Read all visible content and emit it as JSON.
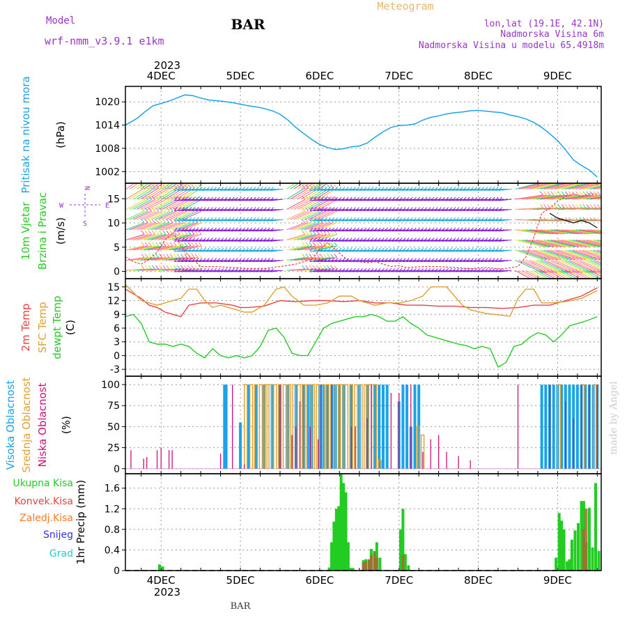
{
  "header": {
    "model_label": "Model",
    "model_name": "wrf-nmm_v3.9.1 e1km",
    "station": "BAR",
    "product": "Meteogram",
    "coords": "lon,lat (19.1E, 42.1N)",
    "elevation": "Nadmorska Visina 6m",
    "model_elevation": "Nadmorska Visina u modelu 65.4918m"
  },
  "footer": {
    "station": "BAR",
    "credit": "made by Angel"
  },
  "time_axis": {
    "year": "2023",
    "days": [
      "4DEC",
      "5DEC",
      "6DEC",
      "7DEC",
      "8DEC",
      "9DEC"
    ]
  },
  "colors": {
    "pressure": "#1aa3e8",
    "wind_green": "#22cc22",
    "wind_purple": "#8822dd",
    "temp2m": "#e84040",
    "sfc_temp": "#e0a030",
    "dewpoint": "#22cc22",
    "high_cloud": "#1aa3e8",
    "mid_cloud": "#e0a030",
    "low_cloud": "#cc1177",
    "total_precip": "#22cc22",
    "conv_precip": "#e84040",
    "frozen": "#ff7a22",
    "snow": "#3333dd",
    "hail": "#22cccc",
    "gust_marker": "#e84040",
    "title_purple": "#9933cc"
  },
  "chart_data": [
    {
      "type": "line",
      "ylabel_lines": [
        "Pritisak na nivou mora",
        "(hPa)"
      ],
      "yticks": [
        "1020",
        "1014",
        "1008",
        "1002"
      ],
      "ylim": [
        999,
        1024
      ],
      "xlim": [
        3.55,
        9.55
      ],
      "grid": true,
      "series": [
        {
          "x": [
            3.55,
            3.6,
            3.7,
            3.8,
            3.9,
            4.0,
            4.1,
            4.2,
            4.3,
            4.4,
            4.5,
            4.6,
            4.7,
            4.8,
            4.9,
            5.0,
            5.1,
            5.2,
            5.3,
            5.4,
            5.5,
            5.6,
            5.7,
            5.8,
            5.9,
            6.0,
            6.1,
            6.2,
            6.3,
            6.4,
            6.5,
            6.6,
            6.7,
            6.8,
            6.9,
            7.0,
            7.1,
            7.2,
            7.3,
            7.4,
            7.5,
            7.6,
            7.7,
            7.8,
            7.9,
            8.0,
            8.1,
            8.2,
            8.3,
            8.4,
            8.5,
            8.6,
            8.7,
            8.8,
            8.9,
            9.0,
            9.1,
            9.2,
            9.3,
            9.4,
            9.5
          ],
          "y": [
            1014,
            1014.6,
            1015.8,
            1017.5,
            1019,
            1019.6,
            1020.2,
            1021,
            1021.8,
            1021.6,
            1021,
            1020.5,
            1020.3,
            1020.1,
            1019.8,
            1019.4,
            1019,
            1018.7,
            1018.3,
            1017.7,
            1016.8,
            1015.3,
            1013.4,
            1011.8,
            1010.3,
            1009,
            1008.2,
            1007.7,
            1007.9,
            1008.4,
            1008.6,
            1009.4,
            1010.9,
            1012.3,
            1013.4,
            1013.9,
            1014,
            1014.3,
            1015.3,
            1016,
            1016.4,
            1016.9,
            1017.2,
            1017.4,
            1017.7,
            1017.8,
            1017.6,
            1017.4,
            1017.2,
            1016.6,
            1016.2,
            1015.6,
            1014.7,
            1013.4,
            1011.8,
            1010,
            1007.6,
            1005,
            1003.6,
            1002.4,
            1000.6
          ]
        }
      ]
    },
    {
      "type": "line",
      "ylabel_lines": [
        "10m Vjetar",
        "Brzina i Pravac",
        "(m/s)"
      ],
      "compass": {
        "n": "N",
        "s": "S",
        "w": "W",
        "e": "E"
      },
      "yticks": [
        "15",
        "10",
        "5",
        "0"
      ],
      "ylim": [
        -1.5,
        18.2
      ],
      "xlim": [
        3.55,
        9.55
      ],
      "grid": true,
      "series": [
        {
          "x": [
            3.55,
            3.65,
            3.75,
            3.85,
            3.95,
            4.05,
            4.15,
            4.3,
            4.5,
            4.7,
            4.9,
            5.1,
            5.3,
            5.5,
            5.7,
            5.9,
            6.0,
            6.1,
            6.2,
            6.3,
            6.4,
            6.5,
            6.6,
            6.7,
            6.8,
            6.9,
            7.0,
            7.1,
            7.3,
            7.5,
            7.7,
            7.9,
            8.1,
            8.3,
            8.5,
            8.6,
            8.7,
            8.8,
            8.9,
            9.0,
            9.1,
            9.2,
            9.3,
            9.4,
            9.5
          ],
          "y": [
            3,
            2,
            1.5,
            2.5,
            4,
            6.5,
            8,
            4,
            1,
            1,
            0.8,
            0.6,
            0.6,
            1,
            1.5,
            2.5,
            4.5,
            6,
            4.5,
            3,
            2,
            2,
            1.8,
            2,
            1.5,
            1,
            1.2,
            0.8,
            1,
            1,
            0.8,
            0.6,
            0.8,
            0.5,
            1,
            3,
            7,
            12,
            13,
            14.5,
            15.5,
            16,
            15.5,
            16,
            16
          ]
        },
        {
          "x": [
            8.9,
            9.0,
            9.1,
            9.2,
            9.3,
            9.4,
            9.5
          ],
          "y": [
            12,
            11,
            10.5,
            10,
            10.5,
            10,
            9
          ]
        }
      ],
      "bands": [
        {
          "from": 3.55,
          "to": 4.3,
          "color": "green"
        },
        {
          "from": 5.55,
          "to": 6.0,
          "color": "green"
        },
        {
          "from": 8.45,
          "to": 9.55,
          "color": "green"
        }
      ]
    },
    {
      "type": "line",
      "ylabel_lines": [
        "2m Temp",
        "SFC Temp",
        "dewpt Temp",
        "(C)"
      ],
      "yticks": [
        "15",
        "12",
        "9",
        "6",
        "3",
        "0",
        "-3"
      ],
      "ylim": [
        -4.5,
        16.8
      ],
      "xlim": [
        3.55,
        9.55
      ],
      "grid": true,
      "series": [
        {
          "name": "2m Temp",
          "x": [
            3.55,
            3.65,
            3.75,
            3.85,
            3.95,
            4.05,
            4.15,
            4.25,
            4.35,
            4.5,
            4.7,
            4.9,
            5.0,
            5.1,
            5.3,
            5.5,
            5.7,
            5.9,
            6.1,
            6.3,
            6.5,
            6.7,
            6.9,
            7.1,
            7.3,
            7.5,
            7.7,
            7.9,
            8.1,
            8.3,
            8.5,
            8.7,
            8.9,
            9.1,
            9.3,
            9.5
          ],
          "y": [
            14.5,
            13.5,
            12.5,
            11,
            10.5,
            9.5,
            9,
            8.5,
            11,
            11.5,
            11.5,
            11,
            10.5,
            10.5,
            10.8,
            12,
            11.8,
            12,
            12,
            11.8,
            12,
            11.5,
            11.5,
            11,
            11,
            10.8,
            10.8,
            10.5,
            10.5,
            10.3,
            10.5,
            11,
            11,
            12,
            13,
            14.8
          ]
        },
        {
          "name": "SFC Temp",
          "x": [
            3.55,
            3.65,
            3.75,
            3.85,
            3.95,
            4.05,
            4.15,
            4.25,
            4.35,
            4.45,
            4.55,
            4.65,
            4.75,
            4.85,
            4.95,
            5.05,
            5.15,
            5.3,
            5.45,
            5.55,
            5.65,
            5.8,
            5.95,
            6.1,
            6.25,
            6.4,
            6.5,
            6.6,
            6.7,
            6.85,
            7.0,
            7.15,
            7.3,
            7.4,
            7.5,
            7.6,
            7.7,
            7.8,
            7.9,
            8.1,
            8.3,
            8.4,
            8.5,
            8.6,
            8.7,
            8.8,
            8.9,
            9.1,
            9.3,
            9.5
          ],
          "y": [
            15.5,
            13.8,
            12,
            11.5,
            11,
            11.5,
            12,
            12.5,
            14.5,
            14.5,
            12,
            10.5,
            11,
            10.5,
            10,
            9.5,
            9.5,
            11,
            14.5,
            15,
            13,
            11,
            11,
            11.5,
            13,
            13,
            12,
            11.5,
            11,
            11.5,
            11.5,
            12,
            13,
            15,
            15,
            15,
            13,
            11,
            10,
            9.2,
            8.8,
            8.6,
            12.5,
            14.5,
            14.5,
            11.5,
            11.5,
            11.8,
            12.5,
            14.2
          ]
        },
        {
          "name": "dewpt Temp",
          "x": [
            3.55,
            3.65,
            3.75,
            3.85,
            3.95,
            4.05,
            4.15,
            4.25,
            4.35,
            4.45,
            4.55,
            4.65,
            4.75,
            4.85,
            4.95,
            5.05,
            5.15,
            5.25,
            5.35,
            5.45,
            5.55,
            5.65,
            5.75,
            5.85,
            5.95,
            6.05,
            6.15,
            6.25,
            6.35,
            6.45,
            6.55,
            6.65,
            6.75,
            6.85,
            6.95,
            7.05,
            7.15,
            7.25,
            7.35,
            7.45,
            7.55,
            7.65,
            7.75,
            7.85,
            7.95,
            8.05,
            8.15,
            8.25,
            8.35,
            8.45,
            8.55,
            8.65,
            8.75,
            8.85,
            8.95,
            9.05,
            9.15,
            9.25,
            9.35,
            9.5
          ],
          "y": [
            8.5,
            9,
            7,
            3,
            2.5,
            2.5,
            2,
            2.5,
            2,
            0.5,
            -0.5,
            1.5,
            0,
            -0.5,
            0,
            -0.5,
            0,
            2,
            5.5,
            6,
            4,
            0.5,
            0,
            0,
            3,
            6,
            7,
            7.5,
            8,
            8.5,
            8.5,
            9,
            8.5,
            7.5,
            7.5,
            8.5,
            7,
            6,
            4.5,
            4,
            3.5,
            3,
            2.5,
            2.2,
            1.5,
            2,
            1.5,
            -2.5,
            -1.5,
            2,
            2.5,
            4,
            5,
            4.5,
            3,
            4.5,
            6.5,
            7,
            7.5,
            8.5
          ]
        }
      ]
    },
    {
      "type": "bar",
      "ylabel_lines": [
        "Visoka Oblacnost",
        "Srednja Oblacnost",
        "Niska Oblacnost",
        "(%)"
      ],
      "yticks": [
        "100",
        "75",
        "50",
        "25",
        "0"
      ],
      "ylim": [
        -6,
        110
      ],
      "xlim": [
        3.55,
        9.55
      ],
      "grid": true,
      "series": [
        {
          "name": "Visoka Oblacnost",
          "x": [
            4.8,
            4.82,
            5.0,
            5.1,
            5.2,
            5.3,
            5.4,
            5.5,
            5.6,
            5.7,
            5.8,
            5.85,
            5.9,
            6.0,
            6.05,
            6.1,
            6.15,
            6.2,
            6.25,
            6.3,
            6.4,
            6.5,
            6.6,
            6.7,
            6.75,
            6.8,
            6.85,
            7.0,
            7.05,
            7.1,
            7.15,
            7.2,
            7.25,
            8.8,
            8.85,
            8.9,
            8.95,
            9.0,
            9.05,
            9.1,
            9.15,
            9.2,
            9.25,
            9.3,
            9.35,
            9.4,
            9.45,
            9.5
          ],
          "values": [
            100,
            100,
            55,
            100,
            100,
            100,
            100,
            100,
            100,
            100,
            100,
            100,
            100,
            100,
            100,
            100,
            100,
            100,
            100,
            100,
            100,
            100,
            100,
            100,
            100,
            100,
            100,
            80,
            100,
            100,
            50,
            100,
            100,
            100,
            100,
            100,
            100,
            100,
            100,
            100,
            100,
            100,
            100,
            100,
            100,
            100,
            100,
            100
          ]
        },
        {
          "name": "Srednja Oblacnost",
          "x": [
            5.05,
            5.12,
            5.18,
            5.24,
            5.3,
            5.36,
            5.42,
            5.48,
            5.54,
            5.6,
            5.66,
            5.72,
            5.78,
            5.84,
            5.9,
            5.96,
            6.02,
            6.08,
            6.14,
            6.2,
            6.26,
            6.32,
            6.38,
            6.44,
            6.5,
            6.56,
            6.62,
            6.68,
            6.74,
            7.22,
            7.28,
            9.0,
            9.3,
            9.45
          ],
          "values": [
            100,
            100,
            100,
            100,
            100,
            100,
            100,
            100,
            100,
            100,
            100,
            100,
            100,
            100,
            100,
            100,
            100,
            100,
            100,
            100,
            100,
            100,
            100,
            100,
            100,
            100,
            100,
            100,
            10,
            50,
            40,
            100,
            100,
            100
          ]
        },
        {
          "name": "Niska Oblacnost",
          "x": [
            3.62,
            3.78,
            3.82,
            3.95,
            4.0,
            4.1,
            4.14,
            4.75,
            4.9,
            5.05,
            5.5,
            5.65,
            5.7,
            5.75,
            5.88,
            5.98,
            6.02,
            6.15,
            6.4,
            6.45,
            6.6,
            6.65,
            6.9,
            7.0,
            7.15,
            7.3,
            7.4,
            7.5,
            7.6,
            7.75,
            7.9,
            8.5,
            8.9,
            9.1,
            9.2,
            9.3,
            9.4,
            9.5
          ],
          "values": [
            22,
            12,
            14,
            22,
            25,
            22,
            22,
            18,
            100,
            5,
            100,
            40,
            50,
            80,
            50,
            35,
            100,
            100,
            50,
            50,
            60,
            100,
            90,
            90,
            100,
            20,
            35,
            40,
            20,
            15,
            10,
            100,
            100,
            80,
            60,
            100,
            100,
            100
          ]
        }
      ]
    },
    {
      "type": "bar",
      "ylabel_lines": [
        "1hr Precip (mm)"
      ],
      "legend_lines": [
        "Ukupna Kisa",
        "Konvek.Kisa",
        "Zaledj.Kisa",
        "Snijeg",
        "Grad"
      ],
      "yticks": [
        "1.6",
        "1.2",
        "0.8",
        "0.4",
        "0"
      ],
      "ylim": [
        0,
        1.88
      ],
      "xlim": [
        3.55,
        9.55
      ],
      "grid": true,
      "series": [
        {
          "name": "Ukupna Kisa",
          "x": [
            3.98,
            4.02,
            6.12,
            6.15,
            6.18,
            6.21,
            6.24,
            6.27,
            6.3,
            6.33,
            6.36,
            6.39,
            6.42,
            6.55,
            6.58,
            6.62,
            6.65,
            6.69,
            6.72,
            6.76,
            7.02,
            7.05,
            7.08,
            7.12,
            8.98,
            9.02,
            9.05,
            9.08,
            9.12,
            9.15,
            9.18,
            9.22,
            9.26,
            9.3,
            9.33,
            9.36,
            9.4,
            9.44,
            9.48,
            9.52
          ],
          "values": [
            0.12,
            0.08,
            0.06,
            0.55,
            0.95,
            1.2,
            1.25,
            1.88,
            1.7,
            1.52,
            0.55,
            0.05,
            0.05,
            0.2,
            0.22,
            0.22,
            0.42,
            0.38,
            0.55,
            0.25,
            0.8,
            1.2,
            0.32,
            0.1,
            0.25,
            1.12,
            0.97,
            0.8,
            0.18,
            0.22,
            0.6,
            0.78,
            0.92,
            1.35,
            1.35,
            0.55,
            1.22,
            0.45,
            1.7,
            0.38
          ]
        },
        {
          "name": "Konvek.Kisa",
          "x": [
            6.55,
            6.58,
            6.62,
            6.65,
            6.69,
            6.72,
            7.05,
            9.33,
            9.36
          ],
          "values": [
            0.15,
            0.18,
            0.2,
            0.3,
            0.35,
            0.25,
            0.3,
            0.8,
            1.2
          ]
        }
      ]
    }
  ]
}
